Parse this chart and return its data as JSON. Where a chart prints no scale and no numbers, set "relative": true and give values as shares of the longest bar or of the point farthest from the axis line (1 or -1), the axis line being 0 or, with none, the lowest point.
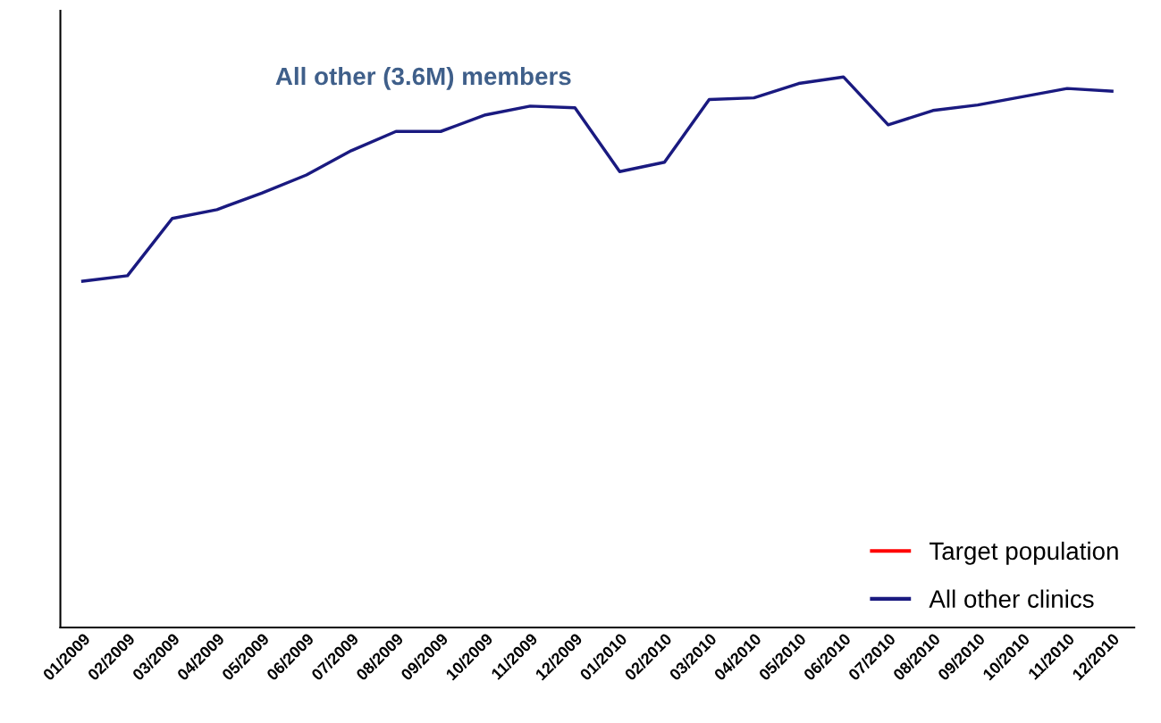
{
  "chart_data": {
    "type": "line",
    "relative": true,
    "categories": [
      "01/2009",
      "02/2009",
      "03/2009",
      "04/2009",
      "05/2009",
      "06/2009",
      "07/2009",
      "08/2009",
      "09/2009",
      "10/2009",
      "11/2009",
      "12/2009",
      "01/2010",
      "02/2010",
      "03/2010",
      "04/2010",
      "05/2010",
      "06/2010",
      "07/2010",
      "08/2010",
      "09/2010",
      "10/2010",
      "11/2010",
      "12/2010"
    ],
    "series": [
      {
        "name": "Target population",
        "color": "#ff0000",
        "values": [
          null,
          null,
          null,
          null,
          null,
          null,
          null,
          null,
          null,
          null,
          null,
          null,
          null,
          null,
          null,
          null,
          null,
          null,
          null,
          null,
          null,
          null,
          null,
          null
        ]
      },
      {
        "name": "All other clinics",
        "color": "#1a1a80",
        "values": [
          0.629,
          0.639,
          0.743,
          0.759,
          0.789,
          0.822,
          0.866,
          0.901,
          0.901,
          0.931,
          0.947,
          0.944,
          0.828,
          0.845,
          0.959,
          0.962,
          0.988,
          1.0,
          0.913,
          0.939,
          0.949,
          0.964,
          0.979,
          0.974
        ]
      }
    ],
    "annotations": [
      "All other (3.6M) members"
    ],
    "legend": "bottom right",
    "grid": false
  }
}
